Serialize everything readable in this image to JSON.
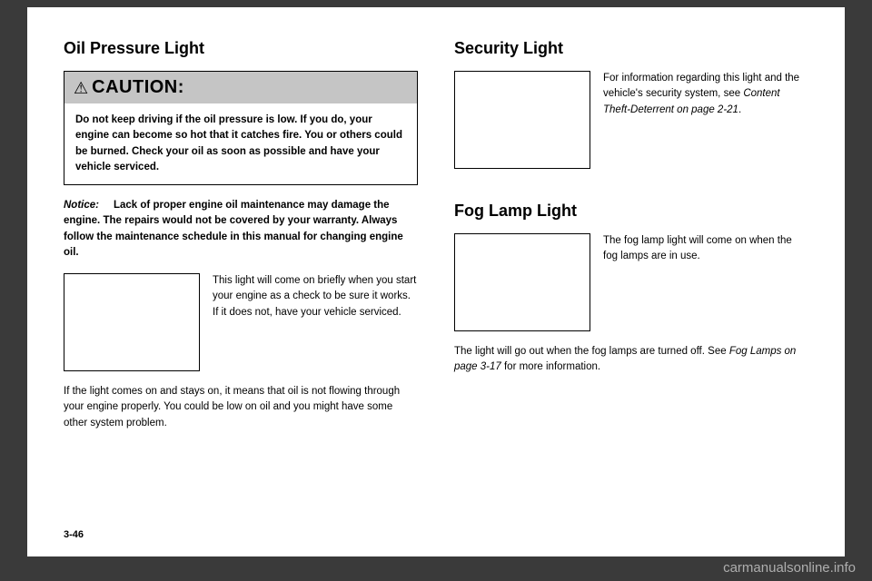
{
  "left": {
    "heading": "Oil Pressure Light",
    "caution_label": "CAUTION:",
    "caution_body": "Do not keep driving if the oil pressure is low. If you do, your engine can become so hot that it catches fire. You or others could be burned. Check your oil as soon as possible and have your vehicle serviced.",
    "notice_label": "Notice:",
    "notice_rest": "Lack of proper engine oil maintenance may damage the engine. The repairs would not be covered by your warranty. Always follow the maintenance schedule in this manual for changing engine oil.",
    "side_text": "This light will come on briefly when you start your engine as a check to be sure it works. If it does not, have your vehicle serviced.",
    "bottom_para": "If the light comes on and stays on, it means that oil is not flowing through your engine properly. You could be low on oil and you might have some other system problem."
  },
  "right": {
    "sec_heading": "Security Light",
    "sec_text_a": "For information regarding this light and the vehicle's security system, see ",
    "sec_text_ital": "Content Theft-Deterrent on page 2-21",
    "sec_text_b": ".",
    "fog_heading": "Fog Lamp Light",
    "fog_side": "The fog lamp light will come on when the fog lamps are in use.",
    "fog_bottom_a": "The light will go out when the fog lamps are turned off. See ",
    "fog_bottom_ital": "Fog Lamps on page 3-17",
    "fog_bottom_b": " for more information."
  },
  "pagenum": "3-46",
  "watermark": "carmanualsonline.info"
}
